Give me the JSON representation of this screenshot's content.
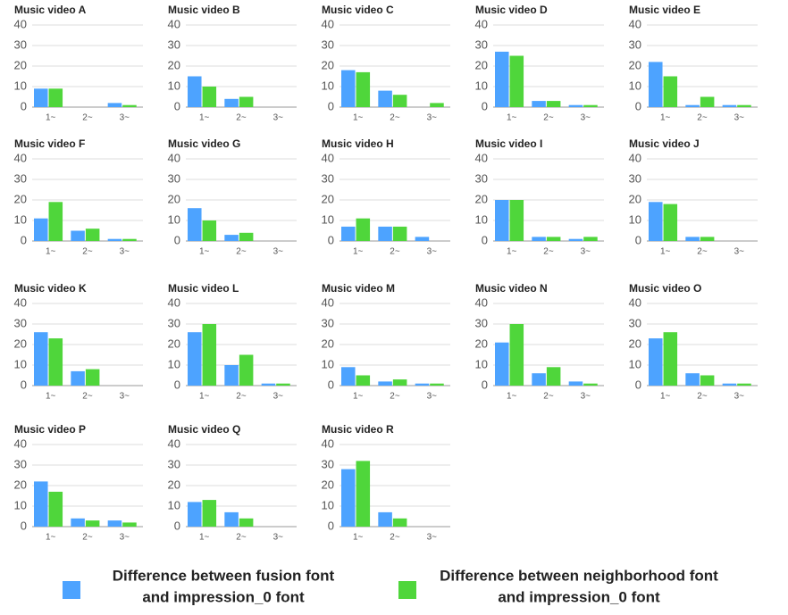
{
  "chart_data": [
    {
      "type": "bar",
      "title": "Music video A",
      "categories": [
        "1~",
        "2~",
        "3~"
      ],
      "series": [
        {
          "color": "#4da3ff",
          "values": [
            9,
            0,
            2
          ]
        },
        {
          "color": "#4fd63b",
          "values": [
            9,
            0,
            1
          ]
        }
      ],
      "ylim": [
        0,
        40
      ],
      "yticks": [
        0,
        10,
        20,
        30,
        40
      ],
      "grid": true
    },
    {
      "type": "bar",
      "title": "Music video B",
      "categories": [
        "1~",
        "2~",
        "3~"
      ],
      "series": [
        {
          "color": "#4da3ff",
          "values": [
            15,
            4,
            0
          ]
        },
        {
          "color": "#4fd63b",
          "values": [
            10,
            5,
            0
          ]
        }
      ],
      "ylim": [
        0,
        40
      ],
      "yticks": [
        0,
        10,
        20,
        30,
        40
      ],
      "grid": true
    },
    {
      "type": "bar",
      "title": "Music video C",
      "categories": [
        "1~",
        "2~",
        "3~"
      ],
      "series": [
        {
          "color": "#4da3ff",
          "values": [
            18,
            8,
            0
          ]
        },
        {
          "color": "#4fd63b",
          "values": [
            17,
            6,
            2
          ]
        }
      ],
      "ylim": [
        0,
        40
      ],
      "yticks": [
        0,
        10,
        20,
        30,
        40
      ],
      "grid": true
    },
    {
      "type": "bar",
      "title": "Music video D",
      "categories": [
        "1~",
        "2~",
        "3~"
      ],
      "series": [
        {
          "color": "#4da3ff",
          "values": [
            27,
            3,
            1
          ]
        },
        {
          "color": "#4fd63b",
          "values": [
            25,
            3,
            1
          ]
        }
      ],
      "ylim": [
        0,
        40
      ],
      "yticks": [
        0,
        10,
        20,
        30,
        40
      ],
      "grid": true
    },
    {
      "type": "bar",
      "title": "Music video E",
      "categories": [
        "1~",
        "2~",
        "3~"
      ],
      "series": [
        {
          "color": "#4da3ff",
          "values": [
            22,
            1,
            1
          ]
        },
        {
          "color": "#4fd63b",
          "values": [
            15,
            5,
            1
          ]
        }
      ],
      "ylim": [
        0,
        40
      ],
      "yticks": [
        0,
        10,
        20,
        30,
        40
      ],
      "grid": true
    },
    {
      "type": "bar",
      "title": "Music video F",
      "categories": [
        "1~",
        "2~",
        "3~"
      ],
      "series": [
        {
          "color": "#4da3ff",
          "values": [
            11,
            5,
            1
          ]
        },
        {
          "color": "#4fd63b",
          "values": [
            19,
            6,
            1
          ]
        }
      ],
      "ylim": [
        0,
        40
      ],
      "yticks": [
        0,
        10,
        20,
        30,
        40
      ],
      "grid": true
    },
    {
      "type": "bar",
      "title": "Music video G",
      "categories": [
        "1~",
        "2~",
        "3~"
      ],
      "series": [
        {
          "color": "#4da3ff",
          "values": [
            16,
            3,
            0
          ]
        },
        {
          "color": "#4fd63b",
          "values": [
            10,
            4,
            0
          ]
        }
      ],
      "ylim": [
        0,
        40
      ],
      "yticks": [
        0,
        10,
        20,
        30,
        40
      ],
      "grid": true
    },
    {
      "type": "bar",
      "title": "Music video H",
      "categories": [
        "1~",
        "2~",
        "3~"
      ],
      "series": [
        {
          "color": "#4da3ff",
          "values": [
            7,
            7,
            2
          ]
        },
        {
          "color": "#4fd63b",
          "values": [
            11,
            7,
            0
          ]
        }
      ],
      "ylim": [
        0,
        40
      ],
      "yticks": [
        0,
        10,
        20,
        30,
        40
      ],
      "grid": true
    },
    {
      "type": "bar",
      "title": "Music video I",
      "categories": [
        "1~",
        "2~",
        "3~"
      ],
      "series": [
        {
          "color": "#4da3ff",
          "values": [
            20,
            2,
            1
          ]
        },
        {
          "color": "#4fd63b",
          "values": [
            20,
            2,
            2
          ]
        }
      ],
      "ylim": [
        0,
        40
      ],
      "yticks": [
        0,
        10,
        20,
        30,
        40
      ],
      "grid": true
    },
    {
      "type": "bar",
      "title": "Music video J",
      "categories": [
        "1~",
        "2~",
        "3~"
      ],
      "series": [
        {
          "color": "#4da3ff",
          "values": [
            19,
            2,
            0
          ]
        },
        {
          "color": "#4fd63b",
          "values": [
            18,
            2,
            0
          ]
        }
      ],
      "ylim": [
        0,
        40
      ],
      "yticks": [
        0,
        10,
        20,
        30,
        40
      ],
      "grid": true
    },
    {
      "type": "bar",
      "title": "Music video K",
      "categories": [
        "1~",
        "2~",
        "3~"
      ],
      "series": [
        {
          "color": "#4da3ff",
          "values": [
            26,
            7,
            0
          ]
        },
        {
          "color": "#4fd63b",
          "values": [
            23,
            8,
            0
          ]
        }
      ],
      "ylim": [
        0,
        40
      ],
      "yticks": [
        0,
        10,
        20,
        30,
        40
      ],
      "grid": true
    },
    {
      "type": "bar",
      "title": "Music video L",
      "categories": [
        "1~",
        "2~",
        "3~"
      ],
      "series": [
        {
          "color": "#4da3ff",
          "values": [
            26,
            10,
            1
          ]
        },
        {
          "color": "#4fd63b",
          "values": [
            30,
            15,
            1
          ]
        }
      ],
      "ylim": [
        0,
        40
      ],
      "yticks": [
        0,
        10,
        20,
        30,
        40
      ],
      "grid": true
    },
    {
      "type": "bar",
      "title": "Music video M",
      "categories": [
        "1~",
        "2~",
        "3~"
      ],
      "series": [
        {
          "color": "#4da3ff",
          "values": [
            9,
            2,
            1
          ]
        },
        {
          "color": "#4fd63b",
          "values": [
            5,
            3,
            1
          ]
        }
      ],
      "ylim": [
        0,
        40
      ],
      "yticks": [
        0,
        10,
        20,
        30,
        40
      ],
      "grid": true
    },
    {
      "type": "bar",
      "title": "Music video N",
      "categories": [
        "1~",
        "2~",
        "3~"
      ],
      "series": [
        {
          "color": "#4da3ff",
          "values": [
            21,
            6,
            2
          ]
        },
        {
          "color": "#4fd63b",
          "values": [
            30,
            9,
            1
          ]
        }
      ],
      "ylim": [
        0,
        40
      ],
      "yticks": [
        0,
        10,
        20,
        30,
        40
      ],
      "grid": true
    },
    {
      "type": "bar",
      "title": "Music video O",
      "categories": [
        "1~",
        "2~",
        "3~"
      ],
      "series": [
        {
          "color": "#4da3ff",
          "values": [
            23,
            6,
            1
          ]
        },
        {
          "color": "#4fd63b",
          "values": [
            26,
            5,
            1
          ]
        }
      ],
      "ylim": [
        0,
        40
      ],
      "yticks": [
        0,
        10,
        20,
        30,
        40
      ],
      "grid": true
    },
    {
      "type": "bar",
      "title": "Music video P",
      "categories": [
        "1~",
        "2~",
        "3~"
      ],
      "series": [
        {
          "color": "#4da3ff",
          "values": [
            22,
            4,
            3
          ]
        },
        {
          "color": "#4fd63b",
          "values": [
            17,
            3,
            2
          ]
        }
      ],
      "ylim": [
        0,
        40
      ],
      "yticks": [
        0,
        10,
        20,
        30,
        40
      ],
      "grid": true
    },
    {
      "type": "bar",
      "title": "Music video Q",
      "categories": [
        "1~",
        "2~",
        "3~"
      ],
      "series": [
        {
          "color": "#4da3ff",
          "values": [
            12,
            7,
            0
          ]
        },
        {
          "color": "#4fd63b",
          "values": [
            13,
            4,
            0
          ]
        }
      ],
      "ylim": [
        0,
        40
      ],
      "yticks": [
        0,
        10,
        20,
        30,
        40
      ],
      "grid": true
    },
    {
      "type": "bar",
      "title": "Music video R",
      "categories": [
        "1~",
        "2~",
        "3~"
      ],
      "series": [
        {
          "color": "#4da3ff",
          "values": [
            28,
            7,
            0
          ]
        },
        {
          "color": "#4fd63b",
          "values": [
            32,
            4,
            0
          ]
        }
      ],
      "ylim": [
        0,
        40
      ],
      "yticks": [
        0,
        10,
        20,
        30,
        40
      ],
      "grid": true
    }
  ],
  "legend": [
    {
      "lines": [
        "Difference between fusion font",
        "and impression_0 font"
      ],
      "color": "#4da3ff"
    },
    {
      "lines": [
        "Difference between neighborhood font",
        "and impression_0 font"
      ],
      "color": "#4fd63b"
    }
  ]
}
